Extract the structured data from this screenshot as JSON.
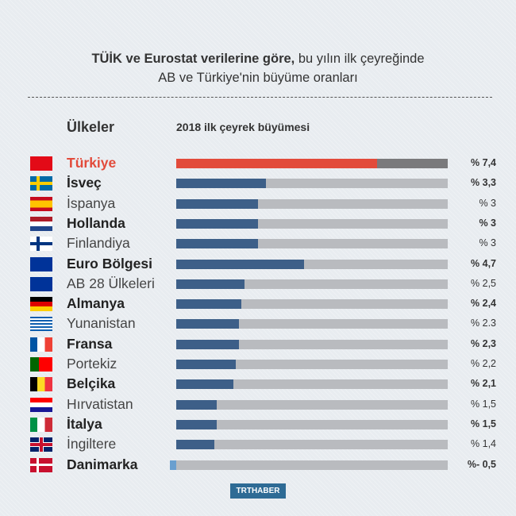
{
  "title": {
    "bold": "TÜİK ve Eurostat verilerine göre,",
    "rest": " bu yılın ilk çeyreğinde",
    "line2": "AB ve Türkiye'nin büyüme oranları"
  },
  "chart_data": {
    "type": "bar",
    "orientation": "horizontal",
    "category_header": "Ülkeler",
    "value_header": "2018 ilk çeyrek büyümesi",
    "categories": [
      "Türkiye",
      "İsveç",
      "İspanya",
      "Hollanda",
      "Finlandiya",
      "Euro Bölgesi",
      "AB 28 Ülkeleri",
      "Almanya",
      "Yunanistan",
      "Fransa",
      "Portekiz",
      "Belçika",
      "Hırvatistan",
      "İtalya",
      "İngiltere",
      "Danimarka"
    ],
    "values": [
      7.4,
      3.3,
      3,
      3,
      3,
      4.7,
      2.5,
      2.4,
      2.3,
      2.3,
      2.2,
      2.1,
      1.5,
      1.5,
      1.4,
      -0.5
    ],
    "value_labels": [
      "% 7,4",
      "% 3,3",
      "% 3",
      "% 3",
      "% 3",
      "% 4,7",
      "% 2,5",
      "% 2,4",
      "% 2.3",
      "% 2,3",
      "% 2,2",
      "% 2,1",
      "% 1,5",
      "% 1,5",
      "% 1,4",
      "%- 0,5"
    ],
    "flags": [
      "turkey",
      "sweden",
      "spain",
      "netherlands",
      "finland",
      "eu",
      "eu",
      "germany",
      "greece",
      "france",
      "portugal",
      "belgium",
      "croatia",
      "italy",
      "uk",
      "denmark"
    ],
    "xlim": [
      0,
      10
    ],
    "colors": {
      "highlight": "#e24b3b",
      "highlight_track": "#7a7a7c",
      "bar": "#3d5f88",
      "negative": "#6a9fcf",
      "track": "#b9bbbf"
    }
  },
  "logo": "TRTHABER"
}
